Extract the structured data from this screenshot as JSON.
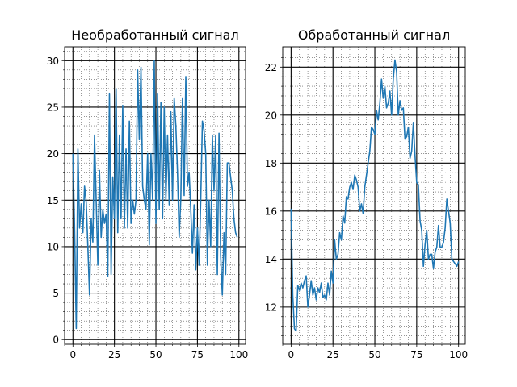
{
  "chart_data": [
    {
      "type": "line",
      "title": "Необработанный сигнал",
      "xlabel": "",
      "ylabel": "",
      "xlim": [
        -5,
        104
      ],
      "ylim": [
        -0.5,
        31.5
      ],
      "x_major_ticks": [
        0,
        25,
        50,
        75,
        100
      ],
      "y_major_ticks": [
        0,
        5,
        10,
        15,
        20,
        25,
        30
      ],
      "x_tick_labels": [
        "0",
        "25",
        "50",
        "75",
        "100"
      ],
      "y_tick_labels": [
        "0",
        "5",
        "10",
        "15",
        "20",
        "25",
        "30"
      ],
      "grid": "major solid, minor dotted",
      "color": "#1f77b4",
      "x": [
        0,
        1,
        2,
        3,
        4,
        5,
        6,
        7,
        8,
        9,
        10,
        11,
        12,
        13,
        14,
        15,
        16,
        17,
        18,
        19,
        20,
        21,
        22,
        23,
        24,
        25,
        26,
        27,
        28,
        29,
        30,
        31,
        32,
        33,
        34,
        35,
        36,
        37,
        38,
        39,
        40,
        41,
        42,
        43,
        44,
        45,
        46,
        47,
        48,
        49,
        50,
        51,
        52,
        53,
        54,
        55,
        56,
        57,
        58,
        59,
        60,
        61,
        62,
        63,
        64,
        65,
        66,
        67,
        68,
        69,
        70,
        71,
        72,
        73,
        74,
        75,
        76,
        77,
        78,
        79,
        80,
        81,
        82,
        83,
        84,
        85,
        86,
        87,
        88,
        89,
        90,
        91,
        92,
        93,
        94,
        95,
        96,
        97,
        98,
        99
      ],
      "y": [
        20.0,
        12.0,
        1.2,
        20.5,
        12.0,
        14.6,
        11.5,
        16.5,
        14.8,
        10.0,
        4.8,
        13.0,
        10.5,
        22.0,
        15.0,
        8.0,
        18.2,
        11.0,
        14.0,
        12.5,
        13.5,
        6.8,
        26.5,
        7.0,
        17.5,
        13.0,
        27.0,
        11.5,
        22.0,
        13.0,
        25.2,
        12.0,
        20.5,
        12.0,
        23.5,
        12.5,
        15.0,
        13.5,
        15.0,
        29.0,
        21.5,
        29.3,
        16.5,
        15.0,
        14.0,
        20.0,
        10.2,
        20.0,
        15.0,
        30.0,
        12.5,
        26.5,
        14.0,
        25.5,
        13.0,
        25.0,
        15.0,
        22.0,
        14.5,
        24.5,
        15.0,
        26.0,
        23.0,
        18.0,
        11.0,
        15.2,
        26.0,
        15.5,
        28.3,
        16.5,
        18.0,
        14.0,
        9.3,
        14.5,
        7.5,
        12.0,
        8.0,
        15.0,
        23.5,
        22.5,
        20.0,
        8.0,
        15.0,
        10.0,
        22.0,
        16.0,
        22.0,
        7.0,
        22.2,
        9.0,
        4.8,
        11.5,
        7.0,
        19.0,
        19.0,
        17.5,
        16.0,
        13.0,
        11.5,
        11.0
      ]
    },
    {
      "type": "line",
      "title": "Обработанный сигнал",
      "xlabel": "",
      "ylabel": "",
      "xlim": [
        -5,
        104
      ],
      "ylim": [
        10.45,
        22.85
      ],
      "x_major_ticks": [
        0,
        25,
        50,
        75,
        100
      ],
      "y_major_ticks": [
        12,
        14,
        16,
        18,
        20,
        22
      ],
      "x_tick_labels": [
        "0",
        "25",
        "50",
        "75",
        "100"
      ],
      "y_tick_labels": [
        "12",
        "14",
        "16",
        "18",
        "20",
        "22"
      ],
      "grid": "major solid, minor dotted",
      "color": "#1f77b4",
      "x": [
        0,
        1,
        2,
        3,
        4,
        5,
        6,
        7,
        8,
        9,
        10,
        11,
        12,
        13,
        14,
        15,
        16,
        17,
        18,
        19,
        20,
        21,
        22,
        23,
        24,
        25,
        26,
        27,
        28,
        29,
        30,
        31,
        32,
        33,
        34,
        35,
        36,
        37,
        38,
        39,
        40,
        41,
        42,
        43,
        44,
        45,
        46,
        47,
        48,
        49,
        50,
        51,
        52,
        53,
        54,
        55,
        56,
        57,
        58,
        59,
        60,
        61,
        62,
        63,
        64,
        65,
        66,
        67,
        68,
        69,
        70,
        71,
        72,
        73,
        74,
        75,
        76,
        77,
        78,
        79,
        80,
        81,
        82,
        83,
        84,
        85,
        86,
        87,
        88,
        89,
        90,
        91,
        92,
        93,
        94,
        95,
        96,
        97,
        98,
        99,
        100
      ],
      "y": [
        16.1,
        12.5,
        11.1,
        11.0,
        12.9,
        12.7,
        13.0,
        12.8,
        13.1,
        13.3,
        12.0,
        12.5,
        13.1,
        12.5,
        12.8,
        12.3,
        12.8,
        12.6,
        13.0,
        12.4,
        12.5,
        12.3,
        13.0,
        12.5,
        13.5,
        13.0,
        14.8,
        14.0,
        14.2,
        15.1,
        14.8,
        15.8,
        15.5,
        16.6,
        16.5,
        17.0,
        17.2,
        16.9,
        17.5,
        17.3,
        17.0,
        16.0,
        16.3,
        15.9,
        17.0,
        17.5,
        18.0,
        18.5,
        19.5,
        19.4,
        19.2,
        20.2,
        19.8,
        20.5,
        21.5,
        20.7,
        21.2,
        20.3,
        20.5,
        21.0,
        20.0,
        21.5,
        22.3,
        21.8,
        20.0,
        20.6,
        20.2,
        20.3,
        19.0,
        19.1,
        19.5,
        18.2,
        18.5,
        19.7,
        18.3,
        17.2,
        17.1,
        15.6,
        15.2,
        13.7,
        14.6,
        15.2,
        14.0,
        14.2,
        14.2,
        13.6,
        14.3,
        14.5,
        15.4,
        14.5,
        14.5,
        14.7,
        15.3,
        16.5,
        16.0,
        15.5,
        14.0,
        13.9,
        13.8,
        13.7,
        13.9
      ]
    }
  ]
}
